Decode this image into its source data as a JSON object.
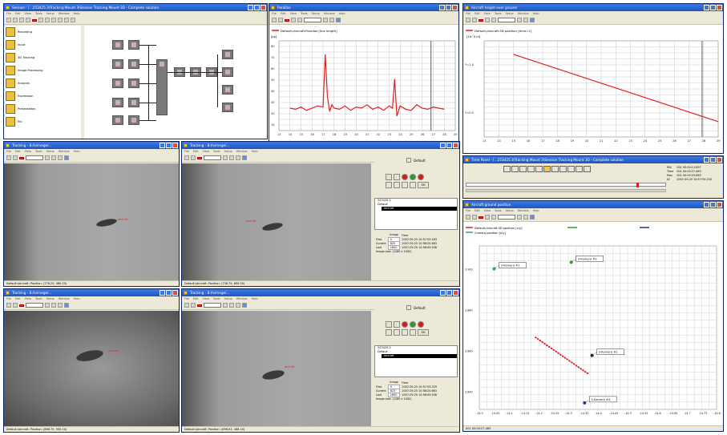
{
  "session_window": {
    "title": "Session - [...253425.3\\Tracking Mount 3\\Session Tracking Mount 3D - Complete solution",
    "menu": [
      "File",
      "Edit",
      "View",
      "Tools",
      "Setup",
      "Window",
      "Help"
    ],
    "sequence_items": [
      "Recording",
      "Input",
      "3D Tracking",
      "Image Processing",
      "Analysis",
      "Expression",
      "Presentation",
      "Etc"
    ]
  },
  "parallax_window": {
    "title": "Parallax",
    "menu": [
      "File",
      "Edit",
      "View",
      "Tools",
      "Setup",
      "Window",
      "Help"
    ],
    "legend": "Default:/aircraft:Parallax [line length]",
    "y_unit": "[px]",
    "status": "001 00:00:27.463",
    "chart_data": {
      "type": "line",
      "title": "",
      "xlabel": "",
      "ylabel": "[px]",
      "x_ticks": [
        "13",
        "14",
        "15",
        "16",
        "17",
        "18",
        "19",
        "20",
        "21",
        "22",
        "23",
        "24",
        "25",
        "26",
        "27",
        "28",
        "29"
      ],
      "y_ticks": [
        "80",
        "70",
        "60",
        "50",
        "40",
        "30",
        "20",
        "10"
      ],
      "xlim": [
        13,
        29
      ],
      "ylim": [
        5,
        85
      ],
      "cursor_x": 26.8,
      "series": [
        {
          "color": "#e02020",
          "x": [
            14.0,
            14.5,
            15.0,
            15.5,
            16.0,
            16.5,
            17.0,
            17.2,
            17.4,
            17.6,
            17.8,
            18.0,
            18.5,
            19.0,
            19.5,
            20.0,
            20.5,
            21.0,
            21.5,
            22.0,
            22.5,
            23.0,
            23.3,
            23.5,
            23.7,
            24.0,
            24.5,
            25.0,
            25.5,
            26.0,
            26.5,
            27.0,
            27.5,
            28.0
          ],
          "y": [
            25,
            24,
            26,
            23,
            25,
            27,
            26,
            73,
            35,
            22,
            28,
            25,
            24,
            27,
            23,
            26,
            25,
            28,
            24,
            26,
            23,
            27,
            25,
            51,
            18,
            27,
            24,
            23,
            28,
            25,
            24,
            26,
            25,
            24
          ]
        }
      ]
    }
  },
  "height_window": {
    "title": "Aircraft height over ground",
    "menu": [
      "File",
      "Edit",
      "View",
      "Tools",
      "Setup",
      "Window",
      "Help"
    ],
    "legend": "Default:/aircraft:3D position [time=1]",
    "y_unit": "[10^0 m]",
    "chart_data": {
      "type": "line",
      "title": "",
      "xlabel": "",
      "ylabel": "",
      "x_ticks": [
        "13",
        "14",
        "15",
        "16",
        "17",
        "18",
        "19",
        "20",
        "21",
        "22",
        "23",
        "24",
        "25",
        "26",
        "27",
        "28",
        "29"
      ],
      "y_ticks": [
        "Y=1.5",
        "Y=0.5"
      ],
      "xlim": [
        13,
        29
      ],
      "ylim": [
        0,
        1
      ],
      "cursor_x": 27.9,
      "series": [
        {
          "color": "#e02020",
          "x": [
            15.0,
            29.0
          ],
          "y": [
            0.86,
            0.16
          ]
        }
      ]
    }
  },
  "time_panel": {
    "title": "Time Panel - [...253425.3\\Tracking Mount 3\\Session Tracking Mount 3D - Complete solution",
    "min_label": "Min",
    "min": "001 00:00:13.897",
    "time_label": "Time",
    "time": "001 00:00:27.463",
    "max_label": "Max",
    "max": "001 00:00:29.663",
    "id_label": "ID",
    "id": "2007-09-25 10:57:53.230"
  },
  "ground_window": {
    "title": "Aircraft ground position",
    "menu": [
      "File",
      "Edit",
      "View",
      "Tools",
      "Setup",
      "Window",
      "Help"
    ],
    "legend_1": "Default:/aircraft:3D position [x/y]",
    "legend_2": "Camera position [x/y]",
    "status": "001 00:00:27.463",
    "chart_data": {
      "type": "scatter",
      "title": "",
      "xlabel": "",
      "ylabel": "",
      "x_ticks": [
        "-14.0",
        "-14.05",
        "-14.1",
        "-14.15",
        "-14.2",
        "-14.25",
        "-14.3",
        "-14.35",
        "-14.4",
        "-14.45",
        "-14.5",
        "-14.55",
        "-14.6",
        "-14.65",
        "-14.7",
        "-14.75",
        "-14.8"
      ],
      "y_ticks": [
        "3.900",
        "3.880",
        "3.860",
        "3.840"
      ],
      "xlim": [
        0,
        16
      ],
      "ylim": [
        0,
        10
      ],
      "cameras": [
        {
          "label": "3-Kamera #1",
          "x": 1.0,
          "y": 8.6,
          "color": "#2a9a9a"
        },
        {
          "label": "3-Kamera #3",
          "x": 6.2,
          "y": 9.0,
          "color": "#2aa02a"
        },
        {
          "label": "3-Kamera #2",
          "x": 7.6,
          "y": 3.3,
          "color": "#222222"
        },
        {
          "label": "3-Kamera #4",
          "x": 7.1,
          "y": 0.4,
          "color": "#2a2aa0"
        }
      ],
      "track": {
        "color": "#e02020",
        "x_start": 3.8,
        "y_start": 4.4,
        "x_end": 7.3,
        "y_end": 2.2,
        "points": 24
      }
    }
  },
  "tracking_windows": [
    {
      "title": "Tracking - B:/Ivimage/...",
      "status": "Default:/aircraft: Position: (776.25, 480.25)",
      "object_label": "aircraft"
    },
    {
      "title": "Tracking - B:/Ivimage/...",
      "status": "Default:/aircraft: Position: (738.75, 650.50)",
      "object_label": "aircraft",
      "panel": {
        "default_label": "Default",
        "tree": [
          "253425.1",
          "Default",
          "aircraft"
        ],
        "image_header": "Image",
        "time_header": "Time",
        "first_label": "First",
        "first_image": "0",
        "first_time": "2007-09-25 10:57:53.163",
        "current_label": "Current",
        "current_image": "825",
        "current_time": "2007-09-25 10:58:20.663",
        "last_label": "Last",
        "last_image": "1600",
        "last_time": "2007-09-25 10:58:49.538",
        "size": "Image size: (1280 x 1000)",
        "ok": "OK"
      }
    },
    {
      "title": "Tracking - B:/Ivimage/...",
      "status": "Default:/aircraft: Position: (666.75, 550.10)",
      "object_label": "aircraft"
    },
    {
      "title": "Tracking - B:/Ivimage/...",
      "status": "Default:/aircraft: Position: (696.03, 468.10)",
      "object_label": "aircraft",
      "panel": {
        "default_label": "Default",
        "tree": [
          "253425.2",
          "Default",
          "aircraft"
        ],
        "image_header": "Image",
        "time_header": "Time",
        "first_label": "First",
        "first_image": "0",
        "first_time": "2007-09-25 10:57:53.229",
        "current_label": "Current",
        "current_image": "823",
        "current_time": "2007-09-25 10:58:20.663",
        "last_label": "Last",
        "last_image": "1600",
        "last_time": "2007-09-25 10:58:49.538",
        "size": "Image size: (1280 x 1000)",
        "ok": "OK"
      }
    }
  ]
}
